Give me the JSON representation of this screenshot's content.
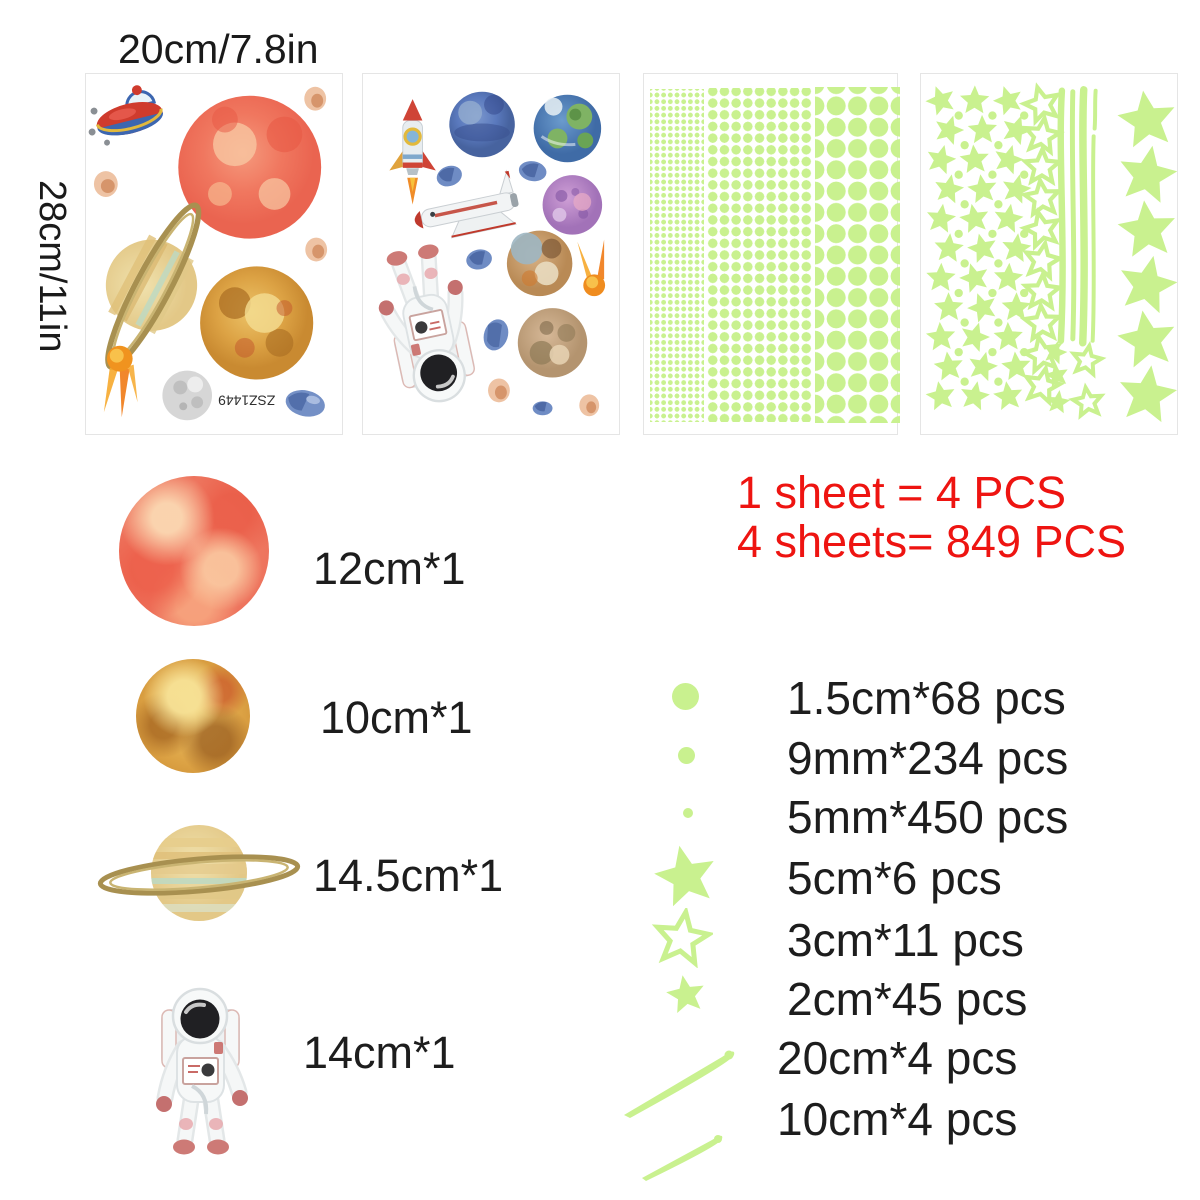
{
  "dimensions": {
    "width_label": "20cm/7.8in",
    "height_label": "28cm/11in"
  },
  "sheet_code": "ZSZ1449",
  "summary": {
    "line1": "1 sheet = 4 PCS",
    "line2": "4 sheets= 849 PCS"
  },
  "planet_items": [
    {
      "name": "red-planet",
      "size_label": "12cm*1"
    },
    {
      "name": "orange-planet",
      "size_label": "10cm*1"
    },
    {
      "name": "saturn-planet",
      "size_label": "14.5cm*1"
    },
    {
      "name": "astronaut",
      "size_label": "14cm*1"
    }
  ],
  "glow_items": [
    {
      "shape": "dot-large",
      "size_label": "1.5cm*68 pcs"
    },
    {
      "shape": "dot-medium",
      "size_label": "9mm*234 pcs"
    },
    {
      "shape": "dot-small",
      "size_label": "5mm*450 pcs"
    },
    {
      "shape": "star-filled-large",
      "size_label": "5cm*6 pcs"
    },
    {
      "shape": "star-outline",
      "size_label": "3cm*11 pcs"
    },
    {
      "shape": "star-filled-small",
      "size_label": "2cm*45 pcs"
    },
    {
      "shape": "strip-long",
      "size_label": "20cm*4 pcs"
    },
    {
      "shape": "strip-short",
      "size_label": "10cm*4 pcs"
    }
  ],
  "colors": {
    "glow_green": "#c9f18f",
    "accent_red": "#ee1411",
    "text": "#1d1d1d"
  }
}
